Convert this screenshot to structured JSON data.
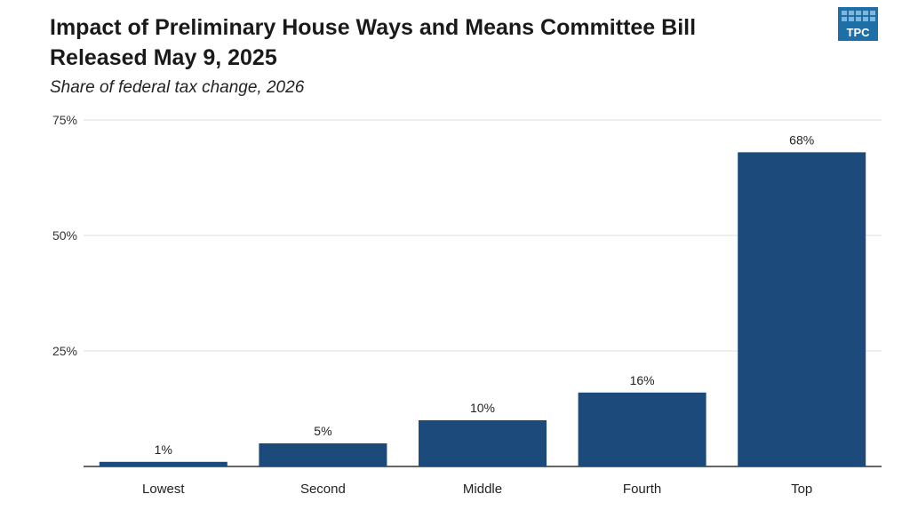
{
  "title_line1": "Impact of Preliminary House Ways and Means Committee Bill",
  "title_line2": "Released May 9, 2025",
  "subtitle": "Share of federal tax change, 2026",
  "logo": {
    "text": "TPC",
    "color": "#1d6fa8"
  },
  "chart_data": {
    "type": "bar",
    "title": "Impact of Preliminary House Ways and Means Committee Bill Released May 9, 2025",
    "subtitle": "Share of federal tax change, 2026",
    "categories": [
      "Lowest",
      "Second",
      "Middle",
      "Fourth",
      "Top"
    ],
    "values": [
      1,
      5,
      10,
      16,
      68
    ],
    "data_labels": [
      "1%",
      "5%",
      "10%",
      "16%",
      "68%"
    ],
    "ylim": [
      0,
      75
    ],
    "yticks": [
      25,
      50,
      75
    ],
    "ytick_labels": [
      "25%",
      "50%",
      "75%"
    ],
    "xlabel": "",
    "ylabel": "",
    "grid": true,
    "bar_color": "#1c4a7b"
  }
}
